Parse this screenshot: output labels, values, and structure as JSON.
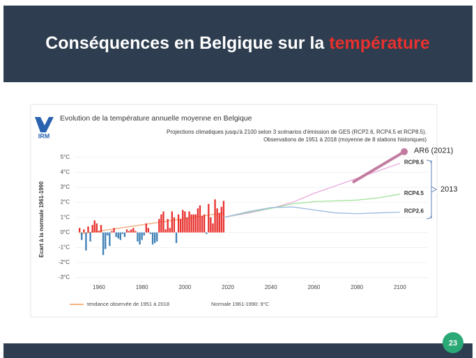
{
  "header": {
    "title": "Conséquences en Belgique sur la ",
    "highlight": "température"
  },
  "slide_number": "23",
  "logo": "IRM",
  "chart_data": {
    "type": "bar",
    "title": "Evolution de la température annuelle moyenne en Belgique",
    "subtitle": [
      "Projections climatiques jusqu'à 2100 selon 3 scénarios d'émission de GES (RCP2.6, RCP4.5 et RCP8.5).",
      "Observations de 1951 à 2018 (moyenne de 8 stations historiques)"
    ],
    "y_label": "Ecart à la normale 1961-1990",
    "xlim": [
      1949,
      2113
    ],
    "ylim": [
      -3.3,
      5.5
    ],
    "xticks": [
      1960,
      1980,
      2000,
      2020,
      2040,
      2060,
      2080,
      2100
    ],
    "yticks": [
      {
        "value": 5,
        "label": "5°C"
      },
      {
        "value": 4,
        "label": "4°C"
      },
      {
        "value": 3,
        "label": "3°C"
      },
      {
        "value": 2,
        "label": "2°C"
      },
      {
        "value": 1,
        "label": "1°C"
      },
      {
        "value": 0,
        "label": "0°C"
      },
      {
        "value": -1,
        "label": "-1°C"
      },
      {
        "value": -2,
        "label": "-2°C"
      },
      {
        "value": -3,
        "label": "-3°C"
      }
    ],
    "grid": true,
    "positive_color": "#e8312e",
    "negative_color": "#3f7fb5",
    "x": [
      1951,
      1952,
      1953,
      1954,
      1955,
      1956,
      1957,
      1958,
      1959,
      1960,
      1961,
      1962,
      1963,
      1964,
      1965,
      1966,
      1967,
      1968,
      1969,
      1970,
      1971,
      1972,
      1973,
      1974,
      1975,
      1976,
      1977,
      1978,
      1979,
      1980,
      1981,
      1982,
      1983,
      1984,
      1985,
      1986,
      1987,
      1988,
      1989,
      1990,
      1991,
      1992,
      1993,
      1994,
      1995,
      1996,
      1997,
      1998,
      1999,
      2000,
      2001,
      2002,
      2003,
      2004,
      2005,
      2006,
      2007,
      2008,
      2009,
      2010,
      2011,
      2012,
      2013,
      2014,
      2015,
      2016,
      2017,
      2018
    ],
    "values": [
      0.3,
      -0.5,
      0.2,
      -1.2,
      0.4,
      -0.6,
      0.5,
      0.8,
      0.6,
      0.1,
      0.5,
      -1.5,
      -1.1,
      -0.2,
      -0.9,
      0.1,
      0.3,
      -0.3,
      -0.4,
      -0.5,
      -0.1,
      -0.3,
      0.2,
      0.1,
      0.2,
      0.3,
      0.1,
      -0.6,
      -0.8,
      -0.5,
      -0.2,
      0.6,
      0.3,
      -0.1,
      -0.8,
      -0.7,
      -0.6,
      0.9,
      1.2,
      1.4,
      0.2,
      0.9,
      0.3,
      1.4,
      1.0,
      -0.7,
      1.2,
      0.9,
      1.5,
      1.4,
      1.0,
      1.4,
      1.2,
      1.2,
      1.2,
      1.6,
      1.8,
      1.1,
      1.2,
      -0.1,
      1.9,
      1.0,
      0.6,
      2.2,
      1.6,
      1.3,
      1.7,
      2.1
    ],
    "lines": [
      {
        "name": "RCP8.5",
        "color": "#e9a6dc",
        "x": [
          2018,
          2030,
          2040,
          2050,
          2060,
          2070,
          2080,
          2090,
          2100
        ],
        "values": [
          1.0,
          1.3,
          1.6,
          2.0,
          2.6,
          3.1,
          3.6,
          4.1,
          4.6
        ]
      },
      {
        "name": "RCP4.5",
        "color": "#9fe39a",
        "x": [
          2018,
          2030,
          2040,
          2050,
          2060,
          2070,
          2080,
          2090,
          2100
        ],
        "values": [
          1.0,
          1.35,
          1.6,
          1.9,
          2.05,
          2.1,
          2.15,
          2.3,
          2.55
        ]
      },
      {
        "name": "RCP2.6",
        "color": "#9ab9de",
        "x": [
          2018,
          2030,
          2040,
          2050,
          2060,
          2070,
          2080,
          2090,
          2100
        ],
        "values": [
          1.0,
          1.4,
          1.65,
          1.7,
          1.5,
          1.3,
          1.25,
          1.3,
          1.35
        ]
      }
    ],
    "trend": {
      "name": "tendance observée de 1951 à 2018",
      "color": "#f4b183",
      "x": [
        1951,
        2018
      ],
      "values": [
        -0.1,
        1.3
      ]
    },
    "ar6": {
      "name": "AR6 (2021)",
      "color": "#c27ba0",
      "x": [
        2078,
        2102
      ],
      "values": [
        3.33,
        5.37
      ]
    },
    "normal_note": "Normale 1961-1990: 9°C",
    "bracket_label": "2013"
  }
}
